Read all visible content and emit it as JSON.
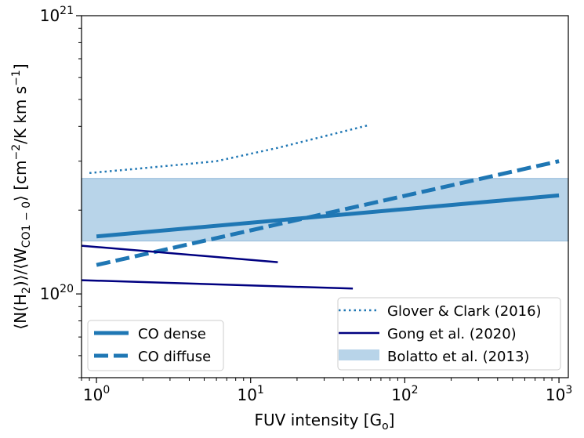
{
  "chart_data": {
    "type": "line",
    "title": "",
    "xlabel": {
      "main": "FUV intensity [G",
      "sub": "o",
      "close": "]"
    },
    "ylabel": {
      "p1": "⟨N(H",
      "s1": "2",
      "p2": ")⟩/⟨W",
      "s2": "CO1 − 0",
      "p3": "⟩ [cm",
      "s3": "−2",
      "p4": "/K km s",
      "s4": "−1",
      "p5": "]"
    },
    "xscale": "log",
    "yscale": "log",
    "xlim": [
      0.8,
      1150
    ],
    "ylim": [
      5e+19,
      1e+21
    ],
    "x_ticks": [
      {
        "value": 1,
        "base": "10",
        "exp": "0"
      },
      {
        "value": 10,
        "base": "10",
        "exp": "1"
      },
      {
        "value": 100,
        "base": "10",
        "exp": "2"
      },
      {
        "value": 1000,
        "base": "10",
        "exp": "3"
      }
    ],
    "y_ticks": [
      {
        "value": 1e+20,
        "base": "10",
        "exp": "20"
      },
      {
        "value": 1e+21,
        "base": "10",
        "exp": "21"
      }
    ],
    "colors": {
      "tab_blue": "#1f77b4",
      "navy": "#000080",
      "band": "#b8d4e9",
      "band_edge": "#9dc0dd"
    },
    "band": {
      "name": "Bolatto et al. (2013)",
      "y_min": 1.55e+20,
      "y_max": 2.6e+20
    },
    "series": [
      {
        "name": "CO dense",
        "style": "solid-thick",
        "color": "#1f77b4",
        "x": [
          1,
          1000
        ],
        "y": [
          1.61e+20,
          2.26e+20
        ]
      },
      {
        "name": "CO diffuse",
        "style": "dashed-thick",
        "color": "#1f77b4",
        "x": [
          1,
          1000
        ],
        "y": [
          1.27e+20,
          3e+20
        ]
      },
      {
        "name": "Glover & Clark (2016)",
        "style": "dotted",
        "color": "#1f77b4",
        "x": [
          0.9,
          2,
          6,
          15,
          57
        ],
        "y": [
          2.72e+20,
          2.83e+20,
          3e+20,
          3.35e+20,
          4.03e+20
        ]
      },
      {
        "name": "Gong et al. (2020)",
        "style": "solid-thin",
        "color": "#000080",
        "x": [
          0.8,
          15
        ],
        "y": [
          1.49e+20,
          1.3e+20
        ]
      },
      {
        "name": "Gong et al. (2020)",
        "style": "solid-thin",
        "color": "#000080",
        "x": [
          0.8,
          46
        ],
        "y": [
          1.12e+20,
          1.045e+20
        ]
      }
    ],
    "legend_left": {
      "position": "lower-left",
      "entries": [
        "CO dense",
        "CO diffuse"
      ]
    },
    "legend_right": {
      "position": "lower-right",
      "entries": [
        "Glover & Clark (2016)",
        "Gong et al. (2020)",
        "Bolatto et al. (2013)"
      ]
    }
  }
}
